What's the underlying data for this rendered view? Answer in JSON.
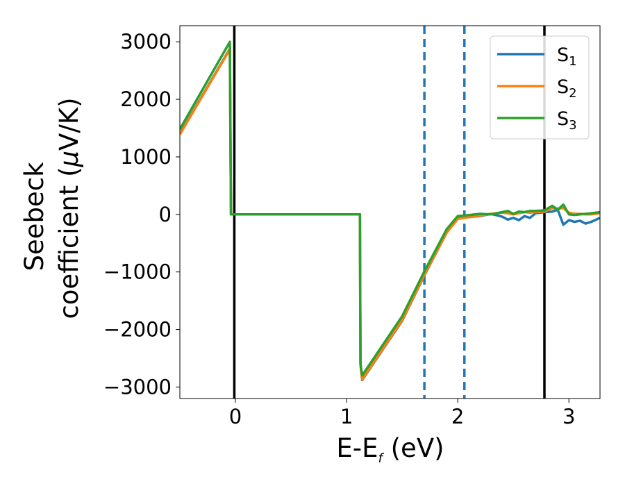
{
  "chart_data": {
    "type": "line",
    "xlabel": "E-E",
    "xlabel_sub": "f",
    "xlabel_unit": " (eV)",
    "ylabel_line1": "Seebeck",
    "ylabel_line2": "coefficient  (",
    "ylabel_mu": "μ",
    "ylabel_unit": "V/K)",
    "xlim": [
      -0.5,
      3.28
    ],
    "ylim": [
      -3200,
      3280
    ],
    "xticks": [
      0,
      1,
      2,
      3
    ],
    "xtick_labels": [
      "0",
      "1",
      "2",
      "3"
    ],
    "yticks": [
      -3000,
      -2000,
      -1000,
      0,
      1000,
      2000,
      3000
    ],
    "ytick_labels": [
      "−3000",
      "−2000",
      "−1000",
      "0",
      "1000",
      "2000",
      "3000"
    ],
    "legend_position": "top-right",
    "vlines": [
      {
        "x": -0.01,
        "style": "solid",
        "color": "#000000"
      },
      {
        "x": 2.78,
        "style": "solid",
        "color": "#000000"
      },
      {
        "x": 1.7,
        "style": "dashed",
        "color": "#1f77b4"
      },
      {
        "x": 2.06,
        "style": "dashed",
        "color": "#1f77b4"
      }
    ],
    "series": [
      {
        "name": "S",
        "sub": "1",
        "color": "#1f77b4",
        "x": [
          -0.5,
          -0.05,
          -0.04,
          1.12,
          1.125,
          1.14,
          1.5,
          1.7,
          1.9,
          2.0,
          2.06,
          2.2,
          2.3,
          2.4,
          2.45,
          2.5,
          2.55,
          2.6,
          2.65,
          2.7,
          2.78,
          2.85,
          2.9,
          2.95,
          3.0,
          3.05,
          3.1,
          3.15,
          3.2,
          3.28
        ],
        "y": [
          1400,
          2880,
          0,
          0,
          -2600,
          -2880,
          -1850,
          -1060,
          -320,
          -60,
          -50,
          -30,
          10,
          -40,
          -90,
          -60,
          -100,
          -30,
          -60,
          20,
          40,
          50,
          80,
          -180,
          -100,
          -130,
          -110,
          -160,
          -130,
          -60
        ]
      },
      {
        "name": "S",
        "sub": "2",
        "color": "#ff7f0e",
        "x": [
          -0.5,
          -0.05,
          -0.04,
          1.12,
          1.125,
          1.14,
          1.5,
          1.7,
          1.9,
          2.0,
          2.06,
          2.2,
          2.3,
          2.4,
          2.45,
          2.5,
          2.55,
          2.6,
          2.65,
          2.7,
          2.78,
          2.85,
          2.9,
          2.95,
          3.0,
          3.05,
          3.1,
          3.15,
          3.2,
          3.28
        ],
        "y": [
          1390,
          2870,
          0,
          0,
          -2620,
          -2870,
          -1840,
          -1050,
          -320,
          -80,
          -60,
          -20,
          10,
          30,
          20,
          0,
          20,
          40,
          30,
          40,
          50,
          110,
          100,
          110,
          30,
          10,
          10,
          0,
          0,
          20
        ]
      },
      {
        "name": "S",
        "sub": "3",
        "color": "#2ca02c",
        "x": [
          -0.5,
          -0.05,
          -0.04,
          1.12,
          1.125,
          1.14,
          1.5,
          1.7,
          1.9,
          2.0,
          2.06,
          2.2,
          2.3,
          2.4,
          2.45,
          2.5,
          2.55,
          2.6,
          2.65,
          2.7,
          2.78,
          2.85,
          2.9,
          2.95,
          3.0,
          3.05,
          3.1,
          3.15,
          3.2,
          3.28
        ],
        "y": [
          1480,
          3000,
          0,
          0,
          -2600,
          -2800,
          -1770,
          -990,
          -260,
          -30,
          -20,
          10,
          0,
          40,
          60,
          10,
          50,
          40,
          60,
          60,
          70,
          150,
          80,
          170,
          0,
          -10,
          0,
          10,
          20,
          40
        ]
      }
    ]
  }
}
